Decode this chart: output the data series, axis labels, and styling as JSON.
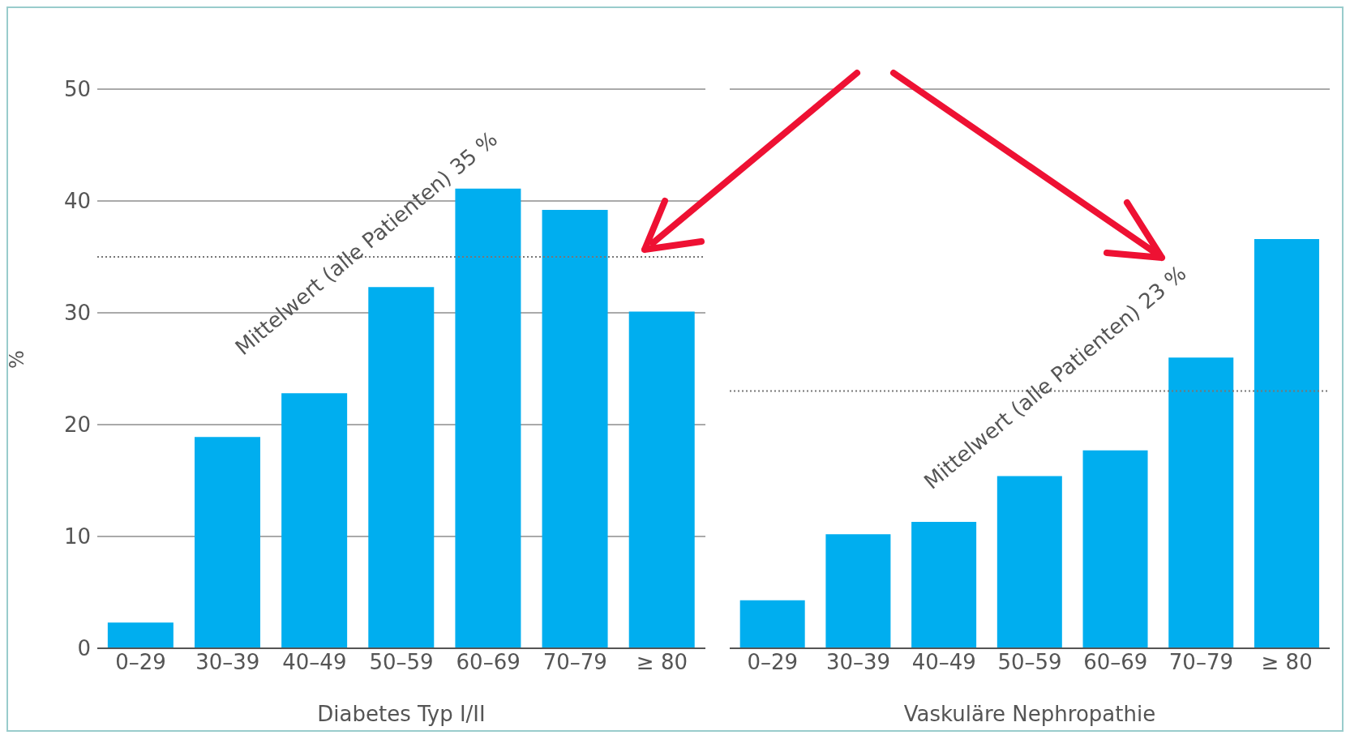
{
  "chart_data": [
    {
      "type": "bar",
      "xlabel": "Diabetes Typ I/II",
      "ylabel": "%",
      "categories": [
        "0–29",
        "30–39",
        "40–49",
        "50–59",
        "60–69",
        "70–79",
        "≥ 80"
      ],
      "values": [
        2.3,
        18.9,
        22.8,
        32.3,
        41.1,
        39.2,
        30.1
      ],
      "color": "#00aeef",
      "ylim": [
        0,
        50
      ],
      "yticks": [
        0,
        10,
        20,
        30,
        40,
        50
      ],
      "grid": "y",
      "legend": false,
      "ref_lines": [
        {
          "axis": "y",
          "value": 35,
          "label": "Mittelwert (alle Patienten) 35 %",
          "color": "#777777",
          "line_style": "dotted"
        }
      ]
    },
    {
      "type": "bar",
      "xlabel": "Vaskuläre Nephropathie",
      "categories": [
        "0–29",
        "30–39",
        "40–49",
        "50–59",
        "60–69",
        "70–79",
        "≥ 80"
      ],
      "values": [
        4.3,
        10.2,
        11.3,
        15.4,
        17.7,
        26.0,
        36.6
      ],
      "color": "#00aeef",
      "ylim": [
        0,
        50
      ],
      "yticks": [
        0,
        10,
        20,
        30,
        40,
        50
      ],
      "grid": "y",
      "legend": false,
      "tick_labels": "x",
      "ref_lines": [
        {
          "axis": "y",
          "value": 23,
          "label": "Mittelwert (alle Patienten) 23 %",
          "color": "#777777",
          "line_style": "dotted"
        }
      ]
    }
  ]
}
